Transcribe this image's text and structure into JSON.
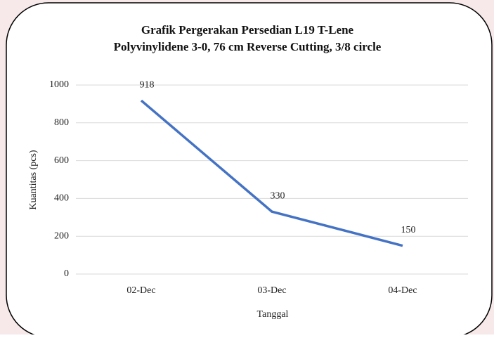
{
  "chart_data": {
    "type": "line",
    "title": [
      "Grafik Pergerakan Persedian L19 T-Lene",
      "Polyvinylidene 3-0, 76 cm Reverse Cutting, 3/8 circle"
    ],
    "x_label": "Tanggal",
    "y_label": "Kuantitas  (pcs)",
    "categories": [
      "02-Dec",
      "03-Dec",
      "04-Dec"
    ],
    "values": [
      918,
      330,
      150
    ],
    "color": "#4472c4",
    "ylim": [
      0,
      1000
    ],
    "yticks": [
      0,
      200,
      400,
      600,
      800,
      1000
    ],
    "grid": true
  }
}
